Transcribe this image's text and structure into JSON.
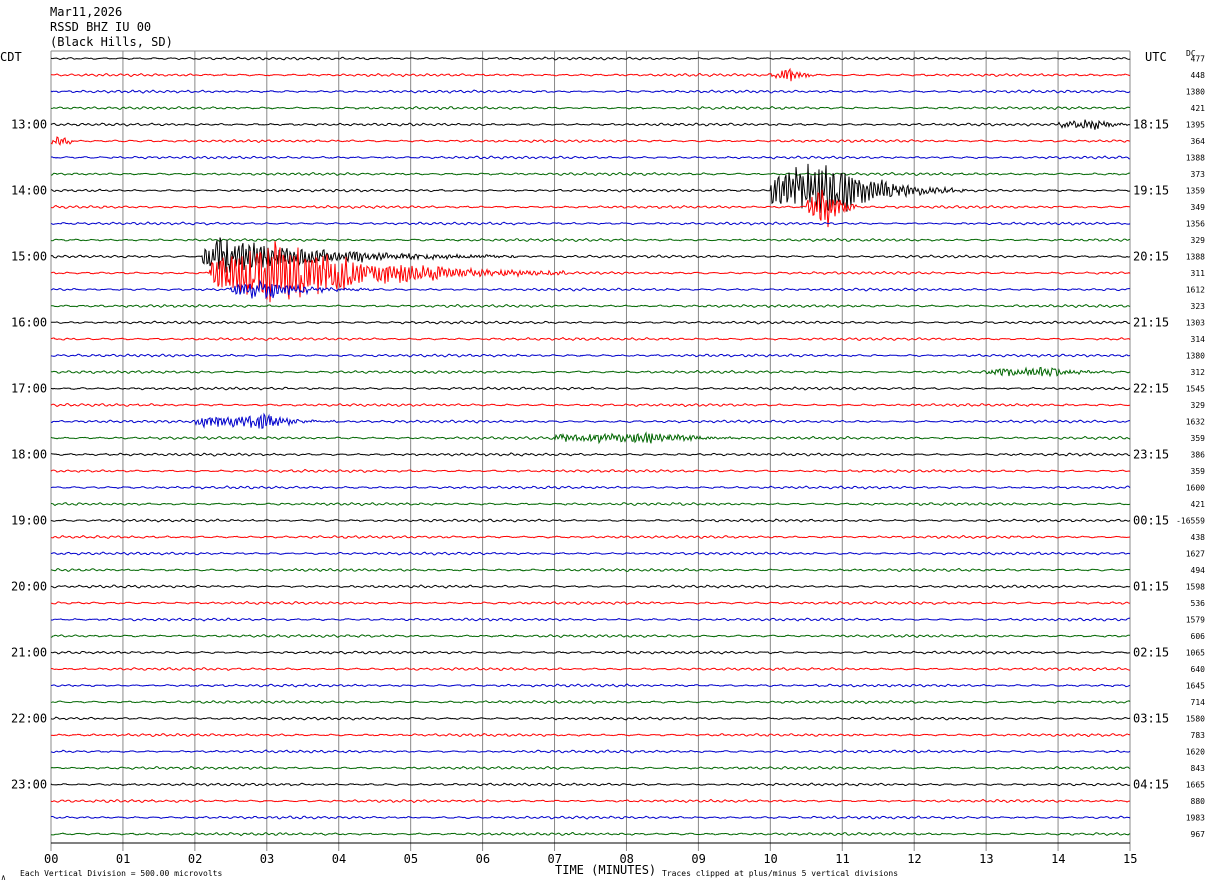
{
  "header": {
    "date": "Mar11,2026",
    "station": "RSSD BHZ IU 00",
    "location": "(Black Hills, SD)"
  },
  "left_zone_label": "CDT",
  "right_zone_label": "UTC",
  "dc_label": "DC",
  "footer": {
    "x_axis_title": "TIME (MINUTES)",
    "scale_note": "Each Vertical Division =  500.00 microvolts",
    "clip_note": "Traces clipped at plus/minus 5 vertical divisions",
    "corner_mark": "∧"
  },
  "colors": {
    "trace_cycle": [
      "#000000",
      "#ff0000",
      "#0000cc",
      "#006600"
    ],
    "grid": "#888888",
    "text": "#000000"
  },
  "chart_data": {
    "type": "line",
    "subtype": "helicorder",
    "title": "RSSD BHZ IU 00",
    "xlabel": "TIME (MINUTES)",
    "xlim": [
      0,
      15
    ],
    "x_ticks": [
      "00",
      "01",
      "02",
      "03",
      "04",
      "05",
      "06",
      "07",
      "08",
      "09",
      "10",
      "11",
      "12",
      "13",
      "14",
      "15"
    ],
    "row_count": 48,
    "minutes_per_row": 15,
    "left_hour_labels": [
      {
        "row": 4,
        "label": "13:00"
      },
      {
        "row": 8,
        "label": "14:00"
      },
      {
        "row": 12,
        "label": "15:00"
      },
      {
        "row": 16,
        "label": "16:00"
      },
      {
        "row": 20,
        "label": "17:00"
      },
      {
        "row": 24,
        "label": "18:00"
      },
      {
        "row": 28,
        "label": "19:00"
      },
      {
        "row": 32,
        "label": "20:00"
      },
      {
        "row": 36,
        "label": "21:00"
      },
      {
        "row": 40,
        "label": "22:00"
      },
      {
        "row": 44,
        "label": "23:00"
      }
    ],
    "right_hour_labels": [
      {
        "row": 4,
        "label": "18:15"
      },
      {
        "row": 8,
        "label": "19:15"
      },
      {
        "row": 12,
        "label": "20:15"
      },
      {
        "row": 16,
        "label": "21:15"
      },
      {
        "row": 20,
        "label": "22:15"
      },
      {
        "row": 24,
        "label": "23:15"
      },
      {
        "row": 28,
        "label": "00:15"
      },
      {
        "row": 32,
        "label": "01:15"
      },
      {
        "row": 36,
        "label": "02:15"
      },
      {
        "row": 40,
        "label": "03:15"
      },
      {
        "row": 44,
        "label": "04:15"
      }
    ],
    "dc_offsets": [
      "477",
      "448",
      "1380",
      "421",
      "1395",
      "364",
      "1388",
      "373",
      "1359",
      "349",
      "1356",
      "329",
      "1388",
      "311",
      "1612",
      "323",
      "1303",
      "314",
      "1380",
      "312",
      "1545",
      "329",
      "1632",
      "359",
      "386",
      "359",
      "1600",
      "421",
      "-16559",
      "438",
      "1627",
      "494",
      "1598",
      "536",
      "1579",
      "606",
      "1065",
      "640",
      "1645",
      "714",
      "1580",
      "783",
      "1620",
      "843",
      "1665",
      "880",
      "1983",
      "967"
    ],
    "events": [
      {
        "row": 8,
        "start_min": 10.0,
        "end_min": 12.7,
        "peak_min": 10.8,
        "amplitude_divisions": 5,
        "note": "clipped burst"
      },
      {
        "row": 9,
        "start_min": 10.5,
        "end_min": 11.2,
        "peak_min": 10.8,
        "amplitude_divisions": 3
      },
      {
        "row": 12,
        "start_min": 2.1,
        "end_min": 6.5,
        "peak_min": 2.3,
        "amplitude_divisions": 3
      },
      {
        "row": 13,
        "start_min": 2.2,
        "end_min": 7.2,
        "peak_min": 3.2,
        "amplitude_divisions": 5,
        "note": "clipped"
      },
      {
        "row": 14,
        "start_min": 2.5,
        "end_min": 4.5,
        "peak_min": 3.0,
        "amplitude_divisions": 1.5
      },
      {
        "row": 22,
        "start_min": 2.0,
        "end_min": 4.0,
        "peak_min": 3.0,
        "amplitude_divisions": 1.2
      },
      {
        "row": 23,
        "start_min": 7.0,
        "end_min": 9.8,
        "peak_min": 8.5,
        "amplitude_divisions": 0.9
      },
      {
        "row": 19,
        "start_min": 13.0,
        "end_min": 15.0,
        "peak_min": 13.8,
        "amplitude_divisions": 0.8
      },
      {
        "row": 4,
        "start_min": 14.0,
        "end_min": 15.0,
        "peak_min": 14.5,
        "amplitude_divisions": 0.8
      },
      {
        "row": 5,
        "start_min": 0.0,
        "end_min": 0.3,
        "peak_min": 0.1,
        "amplitude_divisions": 1.0
      },
      {
        "row": 1,
        "start_min": 10.0,
        "end_min": 10.6,
        "peak_min": 10.3,
        "amplitude_divisions": 1.0
      }
    ],
    "grid": true
  }
}
